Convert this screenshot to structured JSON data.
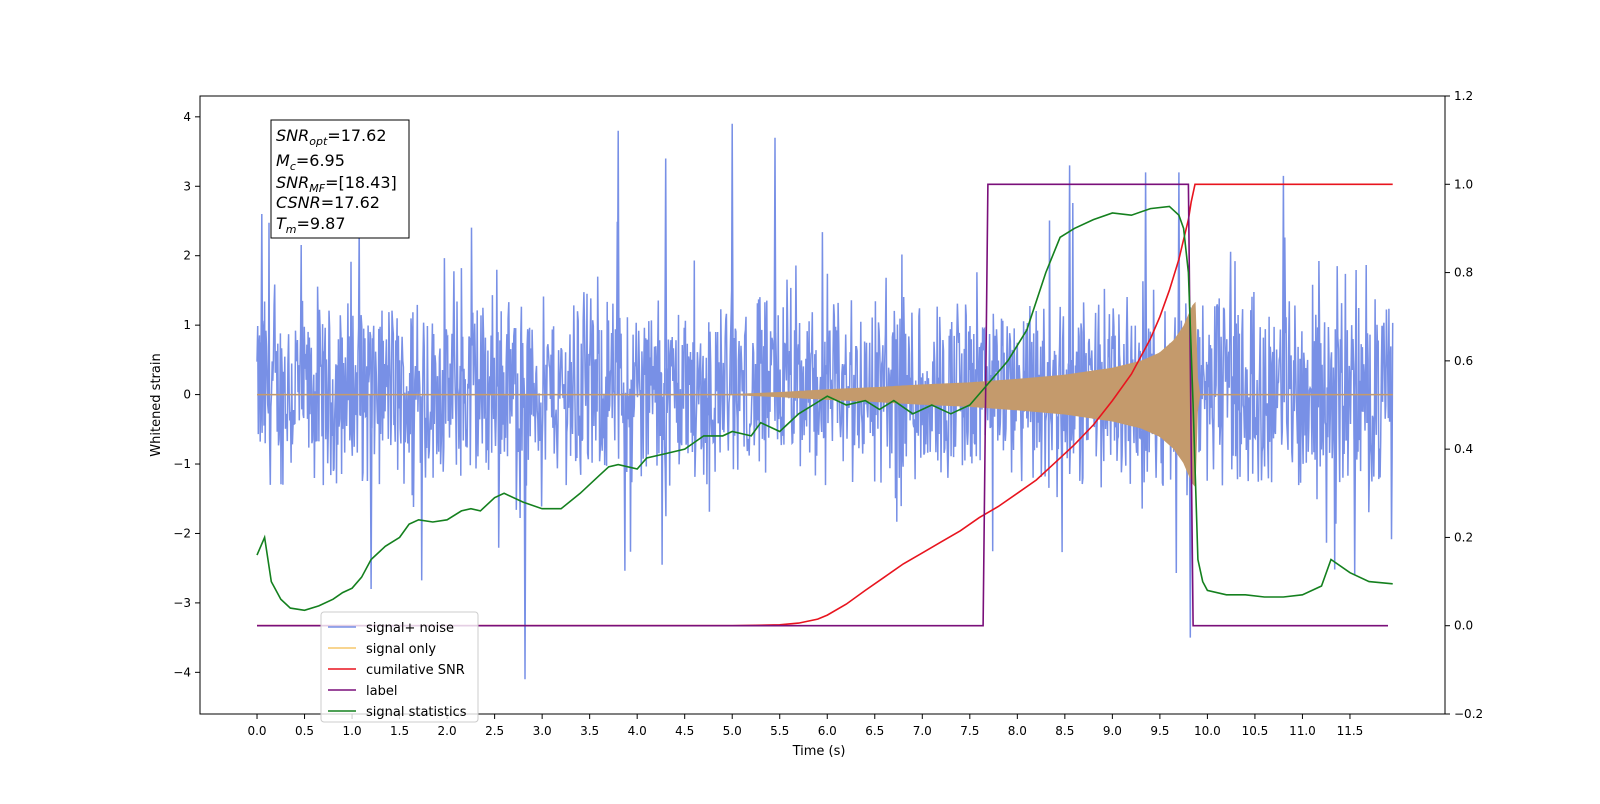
{
  "chart_data": {
    "type": "line",
    "xlabel": "Time (s)",
    "ylabel": "Whitened strain",
    "xlim": [
      -0.6,
      12.5
    ],
    "ylim": [
      -4.6,
      4.3
    ],
    "y2lim": [
      -0.2,
      1.2
    ],
    "x_ticks": [
      0.0,
      0.5,
      1.0,
      1.5,
      2.0,
      2.5,
      3.0,
      3.5,
      4.0,
      4.5,
      5.0,
      5.5,
      6.0,
      6.5,
      7.0,
      7.5,
      8.0,
      8.5,
      9.0,
      9.5,
      10.0,
      10.5,
      11.0,
      11.5
    ],
    "x_tick_labels": [
      "0.0",
      "0.5",
      "1.0",
      "1.5",
      "2.0",
      "2.5",
      "3.0",
      "3.5",
      "4.0",
      "4.5",
      "5.0",
      "5.5",
      "6.0",
      "6.5",
      "7.0",
      "7.5",
      "8.0",
      "8.5",
      "9.0",
      "9.5",
      "10.0",
      "10.5",
      "11.0",
      "11.5"
    ],
    "y_ticks": [
      -4,
      -3,
      -2,
      -1,
      0,
      1,
      2,
      3,
      4
    ],
    "y_tick_labels": [
      "−4",
      "−3",
      "−2",
      "−1",
      "0",
      "1",
      "2",
      "3",
      "4"
    ],
    "y2_ticks": [
      -0.2,
      0.0,
      0.2,
      0.4,
      0.6,
      0.8,
      1.0,
      1.2
    ],
    "y2_tick_labels": [
      "−0.2",
      "0.0",
      "0.2",
      "0.4",
      "0.6",
      "0.8",
      "1.0",
      "1.2"
    ],
    "grid": false,
    "legend_position": "lower-left",
    "series": [
      {
        "name": "signal+ noise",
        "color": "#7890e6",
        "axis": "left",
        "kind": "noise-band",
        "band_low": -2.1,
        "band_high": 2.3,
        "extremes": [
          [
            0.05,
            2.6
          ],
          [
            1.2,
            -2.8
          ],
          [
            2.82,
            -4.1
          ],
          [
            3.8,
            3.8
          ],
          [
            4.3,
            3.4
          ],
          [
            5.0,
            3.9
          ],
          [
            5.45,
            3.7
          ],
          [
            8.55,
            3.3
          ],
          [
            9.35,
            3.2
          ],
          [
            9.7,
            3.2
          ],
          [
            9.82,
            -3.5
          ],
          [
            10.8,
            3.15
          ],
          [
            11.55,
            -2.6
          ]
        ],
        "x": [
          0,
          11.95
        ]
      },
      {
        "name": "signal only",
        "color": "#c49a6c",
        "axis": "left",
        "kind": "chirp-envelope",
        "x": [
          0.0,
          5.0,
          5.5,
          6.0,
          6.5,
          7.0,
          7.5,
          8.0,
          8.5,
          9.0,
          9.3,
          9.5,
          9.65,
          9.75,
          9.82,
          9.87,
          9.9,
          11.95
        ],
        "values": [
          0.0,
          0.0,
          0.03,
          0.07,
          0.1,
          0.14,
          0.17,
          0.22,
          0.28,
          0.38,
          0.48,
          0.6,
          0.78,
          0.98,
          1.2,
          1.35,
          0.0,
          0.0
        ]
      },
      {
        "name": "cumilative SNR",
        "color": "#e8141e",
        "axis": "right",
        "x": [
          0.0,
          5.0,
          5.5,
          5.7,
          5.9,
          6.0,
          6.2,
          6.4,
          6.6,
          6.8,
          7.0,
          7.2,
          7.4,
          7.6,
          7.8,
          8.0,
          8.2,
          8.4,
          8.6,
          8.8,
          9.0,
          9.2,
          9.4,
          9.5,
          9.6,
          9.7,
          9.75,
          9.8,
          9.83,
          9.87,
          11.95
        ],
        "values": [
          0.0,
          0.0,
          0.002,
          0.006,
          0.015,
          0.024,
          0.049,
          0.08,
          0.11,
          0.14,
          0.165,
          0.19,
          0.215,
          0.245,
          0.27,
          0.3,
          0.33,
          0.37,
          0.41,
          0.455,
          0.51,
          0.57,
          0.65,
          0.7,
          0.76,
          0.83,
          0.875,
          0.92,
          0.96,
          1.0,
          1.0
        ]
      },
      {
        "name": "label",
        "color": "#7a0f7a",
        "axis": "right",
        "x": [
          0.0,
          7.64,
          7.69,
          9.8,
          9.85,
          11.9
        ],
        "values": [
          0.0,
          0.0,
          1.0,
          1.0,
          0.0,
          0.0
        ]
      },
      {
        "name": "signal statistics",
        "color": "#14801e",
        "axis": "right",
        "x": [
          0.0,
          0.08,
          0.15,
          0.25,
          0.35,
          0.5,
          0.65,
          0.8,
          0.9,
          1.0,
          1.1,
          1.2,
          1.35,
          1.5,
          1.6,
          1.7,
          1.85,
          2.0,
          2.15,
          2.25,
          2.35,
          2.5,
          2.6,
          2.8,
          3.0,
          3.2,
          3.4,
          3.6,
          3.7,
          3.8,
          4.0,
          4.1,
          4.3,
          4.5,
          4.7,
          4.9,
          5.0,
          5.2,
          5.3,
          5.5,
          5.7,
          5.85,
          6.0,
          6.2,
          6.4,
          6.55,
          6.7,
          6.9,
          7.1,
          7.3,
          7.5,
          7.7,
          7.9,
          8.1,
          8.3,
          8.45,
          8.6,
          8.8,
          9.0,
          9.2,
          9.4,
          9.6,
          9.7,
          9.75,
          9.8,
          9.85,
          9.9,
          9.95,
          10.0,
          10.2,
          10.4,
          10.6,
          10.8,
          11.0,
          11.2,
          11.3,
          11.5,
          11.7,
          11.95
        ],
        "values": [
          0.16,
          0.2,
          0.1,
          0.06,
          0.04,
          0.035,
          0.045,
          0.06,
          0.075,
          0.085,
          0.11,
          0.15,
          0.18,
          0.2,
          0.23,
          0.24,
          0.235,
          0.24,
          0.26,
          0.265,
          0.26,
          0.29,
          0.3,
          0.28,
          0.265,
          0.265,
          0.3,
          0.34,
          0.36,
          0.365,
          0.355,
          0.38,
          0.39,
          0.4,
          0.43,
          0.43,
          0.44,
          0.43,
          0.46,
          0.44,
          0.48,
          0.5,
          0.52,
          0.5,
          0.51,
          0.49,
          0.51,
          0.48,
          0.5,
          0.48,
          0.5,
          0.55,
          0.6,
          0.67,
          0.8,
          0.88,
          0.9,
          0.92,
          0.935,
          0.93,
          0.945,
          0.95,
          0.93,
          0.9,
          0.8,
          0.5,
          0.15,
          0.1,
          0.08,
          0.07,
          0.07,
          0.065,
          0.065,
          0.07,
          0.09,
          0.15,
          0.12,
          0.1,
          0.095
        ]
      }
    ],
    "legend_entries": [
      {
        "label": "signal+ noise",
        "color": "#7890e6"
      },
      {
        "label": "signal only",
        "color": "#f5c76b"
      },
      {
        "label": "cumilative SNR",
        "color": "#e8141e"
      },
      {
        "label": "label",
        "color": "#7a0f7a"
      },
      {
        "label": "signal statistics",
        "color": "#14801e"
      }
    ],
    "annotation": {
      "snr_opt": "17.62",
      "mc": "6.95",
      "snr_mf": "[18.43]",
      "csnr": "17.62",
      "tm": "9.87"
    }
  }
}
